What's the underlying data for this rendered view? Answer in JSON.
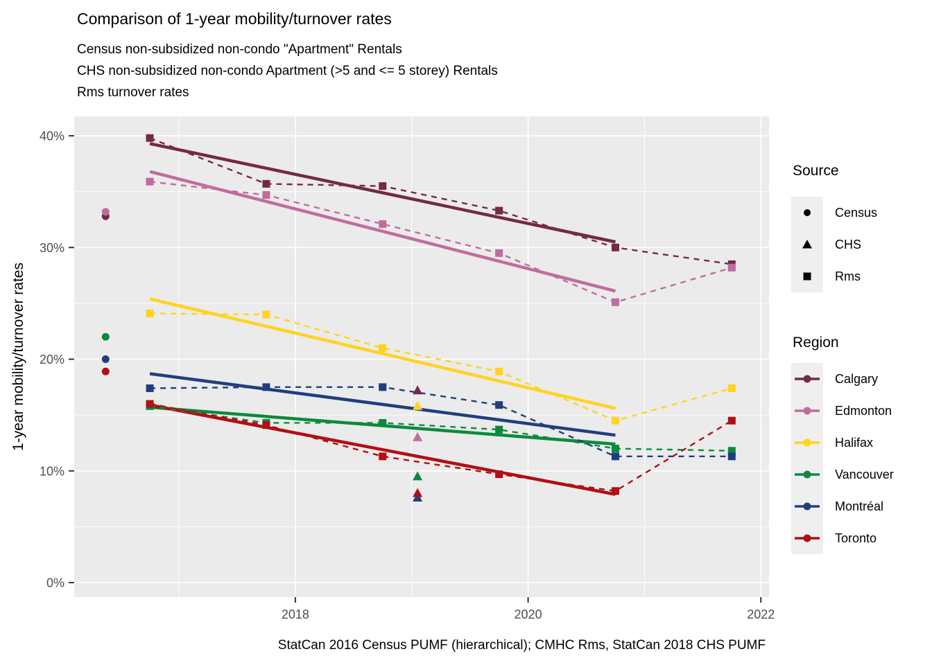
{
  "header": {
    "title": "Comparison of 1-year mobility/turnover rates",
    "subtitle_lines": [
      "Census non-subsidized non-condo \"Apartment\" Rentals",
      "CHS non-subsidized non-condo Apartment (>5 and <= 5 storey) Rentals",
      "Rms turnover rates"
    ]
  },
  "caption": "StatCan 2016 Census PUMF (hierarchical); CMHC Rms, StatCan 2018 CHS PUMF",
  "legend": {
    "key_bg": "#EFEFEF",
    "source": {
      "title": "Source",
      "items": [
        {
          "label": "Census",
          "shape": "circle"
        },
        {
          "label": "CHS",
          "shape": "triangle"
        },
        {
          "label": "Rms",
          "shape": "square"
        }
      ]
    },
    "region": {
      "title": "Region",
      "items": [
        {
          "label": "Calgary",
          "color": "#742945"
        },
        {
          "label": "Edmonton",
          "color": "#C06C9E"
        },
        {
          "label": "Halifax",
          "color": "#FFD320"
        },
        {
          "label": "Vancouver",
          "color": "#0A8A3D"
        },
        {
          "label": "Montréal",
          "color": "#203E7F"
        },
        {
          "label": "Toronto",
          "color": "#B00F15"
        }
      ]
    }
  },
  "chart_data": {
    "type": "line",
    "title": "Comparison of 1-year mobility/turnover rates",
    "xlabel": "",
    "ylabel": "1-year mobility/turnover rates",
    "xlim": [
      2016.1,
      2022.07
    ],
    "ylim": [
      -1.3,
      41.74
    ],
    "panel_bg": "#EBEBEB",
    "grid_color": "#FFFFFF",
    "axis_text_color": "#4D4D4D",
    "tick_mark_color": "#333333",
    "legend_position": "right",
    "x_major_ticks": [
      {
        "value": 2018,
        "label": "2018"
      },
      {
        "value": 2020,
        "label": "2020"
      },
      {
        "value": 2022,
        "label": "2022"
      }
    ],
    "x_minor_ticks": [
      2017,
      2019,
      2021
    ],
    "y_major_ticks": [
      {
        "value": 0,
        "label": "0%"
      },
      {
        "value": 10,
        "label": "10%"
      },
      {
        "value": 20,
        "label": "20%"
      },
      {
        "value": 30,
        "label": "30%"
      },
      {
        "value": 40,
        "label": "40%"
      }
    ],
    "y_minor_ticks": [
      5,
      15,
      25,
      35
    ],
    "census_x": 2016.37,
    "chs_x": 2019.05,
    "rms_x": [
      2016.75,
      2017.75,
      2018.75,
      2019.75,
      2020.75,
      2021.75
    ],
    "series": [
      {
        "region": "Calgary",
        "color": "#742945",
        "census_pct": 32.8,
        "chs_pct": 17.2,
        "rms_pct": [
          39.8,
          35.7,
          35.5,
          33.3,
          30.0,
          28.5
        ],
        "trend": {
          "x": [
            2016.75,
            2020.75
          ],
          "y": [
            39.3,
            30.5
          ]
        }
      },
      {
        "region": "Edmonton",
        "color": "#C06C9E",
        "census_pct": 33.2,
        "chs_pct": 13.0,
        "rms_pct": [
          35.9,
          34.7,
          32.1,
          29.5,
          25.1,
          28.2
        ],
        "trend": {
          "x": [
            2016.75,
            2020.75
          ],
          "y": [
            36.8,
            26.1
          ]
        }
      },
      {
        "region": "Halifax",
        "color": "#FFD320",
        "census_pct": null,
        "chs_pct": 15.8,
        "rms_pct": [
          24.1,
          24.0,
          21.0,
          18.9,
          14.5,
          17.4
        ],
        "trend": {
          "x": [
            2016.75,
            2020.75
          ],
          "y": [
            25.4,
            15.6
          ]
        }
      },
      {
        "region": "Vancouver",
        "color": "#0A8A3D",
        "census_pct": 22.0,
        "chs_pct": 9.5,
        "rms_pct": [
          15.8,
          14.3,
          14.3,
          13.7,
          12.0,
          11.8
        ],
        "trend": {
          "x": [
            2016.75,
            2020.75
          ],
          "y": [
            15.7,
            12.4
          ]
        }
      },
      {
        "region": "Montréal",
        "color": "#203E7F",
        "census_pct": 20.0,
        "chs_pct": 7.6,
        "rms_pct": [
          17.4,
          17.5,
          17.5,
          15.9,
          11.3,
          11.3
        ],
        "trend": {
          "x": [
            2016.75,
            2020.75
          ],
          "y": [
            18.7,
            13.2
          ]
        }
      },
      {
        "region": "Toronto",
        "color": "#B00F15",
        "census_pct": 18.9,
        "chs_pct": 8.0,
        "rms_pct": [
          16.0,
          14.1,
          11.3,
          9.7,
          8.2,
          14.5
        ],
        "trend": {
          "x": [
            2016.75,
            2020.75
          ],
          "y": [
            15.9,
            7.9
          ]
        }
      }
    ]
  }
}
